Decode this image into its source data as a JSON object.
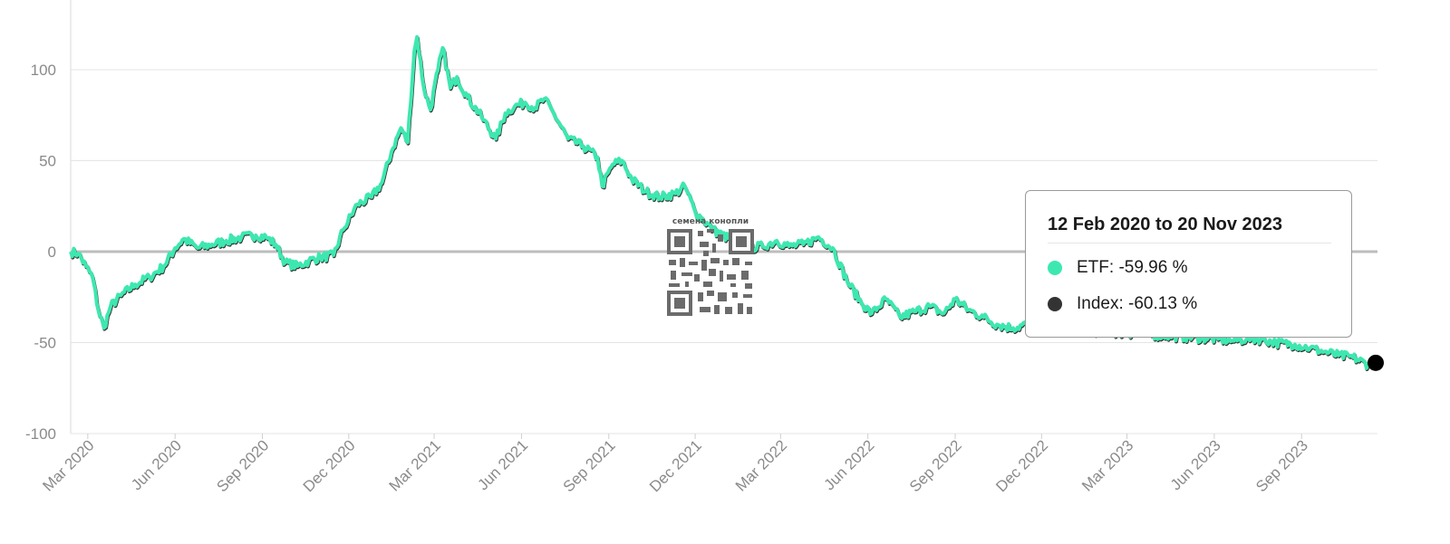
{
  "chart_data": {
    "type": "line",
    "title": "",
    "xlabel": "",
    "ylabel": "",
    "x_range": [
      "2020-02-12",
      "2023-11-20"
    ],
    "ylim": [
      -100,
      120
    ],
    "y_ticks": [
      "100",
      "50",
      "0",
      "-50",
      "-100"
    ],
    "y_tick_values": [
      100,
      50,
      0,
      -50,
      -100
    ],
    "x_ticks": [
      "Mar 2020",
      "Jun 2020",
      "Sep 2020",
      "Dec 2020",
      "Mar 2021",
      "Jun 2021",
      "Sep 2021",
      "Dec 2021",
      "Mar 2022",
      "Jun 2022",
      "Sep 2022",
      "Dec 2022",
      "Mar 2023",
      "Jun 2023",
      "Sep 2023"
    ],
    "x_tick_dates": [
      "2020-03-01",
      "2020-06-01",
      "2020-09-01",
      "2020-12-01",
      "2021-03-01",
      "2021-06-01",
      "2021-09-01",
      "2021-12-01",
      "2022-03-01",
      "2022-06-01",
      "2022-09-01",
      "2022-12-01",
      "2023-03-01",
      "2023-06-01",
      "2023-09-01"
    ],
    "grid": true,
    "series": [
      {
        "name": "ETF",
        "color": "#3de8b0",
        "points": [
          [
            "2020-02-12",
            0
          ],
          [
            "2020-02-20",
            -1
          ],
          [
            "2020-02-28",
            -8
          ],
          [
            "2020-03-06",
            -14
          ],
          [
            "2020-03-12",
            -32
          ],
          [
            "2020-03-18",
            -42
          ],
          [
            "2020-03-25",
            -30
          ],
          [
            "2020-04-05",
            -24
          ],
          [
            "2020-04-20",
            -18
          ],
          [
            "2020-05-05",
            -14
          ],
          [
            "2020-05-20",
            -8
          ],
          [
            "2020-06-01",
            2
          ],
          [
            "2020-06-10",
            7
          ],
          [
            "2020-06-25",
            2
          ],
          [
            "2020-07-10",
            4
          ],
          [
            "2020-07-25",
            6
          ],
          [
            "2020-08-10",
            8
          ],
          [
            "2020-08-25",
            9
          ],
          [
            "2020-09-05",
            8
          ],
          [
            "2020-09-15",
            4
          ],
          [
            "2020-09-25",
            -6
          ],
          [
            "2020-10-08",
            -8
          ],
          [
            "2020-10-20",
            -5
          ],
          [
            "2020-11-01",
            -3
          ],
          [
            "2020-11-15",
            -2
          ],
          [
            "2020-11-25",
            12
          ],
          [
            "2020-12-10",
            26
          ],
          [
            "2020-12-25",
            30
          ],
          [
            "2021-01-05",
            38
          ],
          [
            "2021-01-15",
            55
          ],
          [
            "2021-01-25",
            68
          ],
          [
            "2021-02-01",
            60
          ],
          [
            "2021-02-08",
            110
          ],
          [
            "2021-02-11",
            118
          ],
          [
            "2021-02-18",
            90
          ],
          [
            "2021-02-25",
            78
          ],
          [
            "2021-03-05",
            100
          ],
          [
            "2021-03-10",
            112
          ],
          [
            "2021-03-18",
            90
          ],
          [
            "2021-03-25",
            96
          ],
          [
            "2021-04-05",
            85
          ],
          [
            "2021-04-20",
            74
          ],
          [
            "2021-05-05",
            62
          ],
          [
            "2021-05-15",
            76
          ],
          [
            "2021-05-25",
            80
          ],
          [
            "2021-06-05",
            82
          ],
          [
            "2021-06-15",
            79
          ],
          [
            "2021-06-25",
            84
          ],
          [
            "2021-07-05",
            76
          ],
          [
            "2021-07-20",
            62
          ],
          [
            "2021-08-05",
            58
          ],
          [
            "2021-08-20",
            52
          ],
          [
            "2021-08-25",
            36
          ],
          [
            "2021-09-05",
            48
          ],
          [
            "2021-09-15",
            50
          ],
          [
            "2021-09-25",
            40
          ],
          [
            "2021-10-10",
            33
          ],
          [
            "2021-10-25",
            30
          ],
          [
            "2021-11-10",
            32
          ],
          [
            "2021-11-20",
            36
          ],
          [
            "2021-12-01",
            22
          ],
          [
            "2021-12-20",
            12
          ],
          [
            "2022-01-10",
            6
          ],
          [
            "2022-01-25",
            2
          ],
          [
            "2022-02-10",
            3
          ],
          [
            "2022-02-25",
            6
          ],
          [
            "2022-03-10",
            3
          ],
          [
            "2022-03-25",
            4
          ],
          [
            "2022-04-10",
            8
          ],
          [
            "2022-04-25",
            2
          ],
          [
            "2022-05-10",
            -16
          ],
          [
            "2022-05-25",
            -28
          ],
          [
            "2022-06-05",
            -34
          ],
          [
            "2022-06-20",
            -26
          ],
          [
            "2022-07-05",
            -36
          ],
          [
            "2022-07-20",
            -33
          ],
          [
            "2022-08-05",
            -30
          ],
          [
            "2022-08-20",
            -34
          ],
          [
            "2022-09-01",
            -26
          ],
          [
            "2022-09-15",
            -32
          ],
          [
            "2022-10-01",
            -36
          ],
          [
            "2022-10-15",
            -40
          ],
          [
            "2022-11-01",
            -42
          ],
          [
            "2022-11-15",
            -40
          ],
          [
            "2022-12-01",
            -38
          ],
          [
            "2022-12-15",
            -42
          ],
          [
            "2023-06-05",
            -48
          ],
          [
            "2023-06-20",
            -49
          ],
          [
            "2023-07-05",
            -48
          ],
          [
            "2023-07-20",
            -48
          ],
          [
            "2023-08-05",
            -50
          ],
          [
            "2023-08-25",
            -51
          ],
          [
            "2023-09-10",
            -53
          ],
          [
            "2023-09-25",
            -55
          ],
          [
            "2023-10-10",
            -57
          ],
          [
            "2023-10-25",
            -58
          ],
          [
            "2023-11-10",
            -62
          ],
          [
            "2023-11-20",
            -59.96
          ]
        ]
      },
      {
        "name": "Index",
        "color": "#333333",
        "end_value": -60.13
      }
    ],
    "end_marker_color": "#000000",
    "tooltip": {
      "title": "12 Feb 2020 to 20 Nov 2023",
      "rows": [
        {
          "label": "ETF: -59.96 %",
          "color": "#3de8b0"
        },
        {
          "label": "Index: -60.13 %",
          "color": "#333333"
        }
      ]
    }
  },
  "watermark": {
    "caption": "семена конопли"
  }
}
